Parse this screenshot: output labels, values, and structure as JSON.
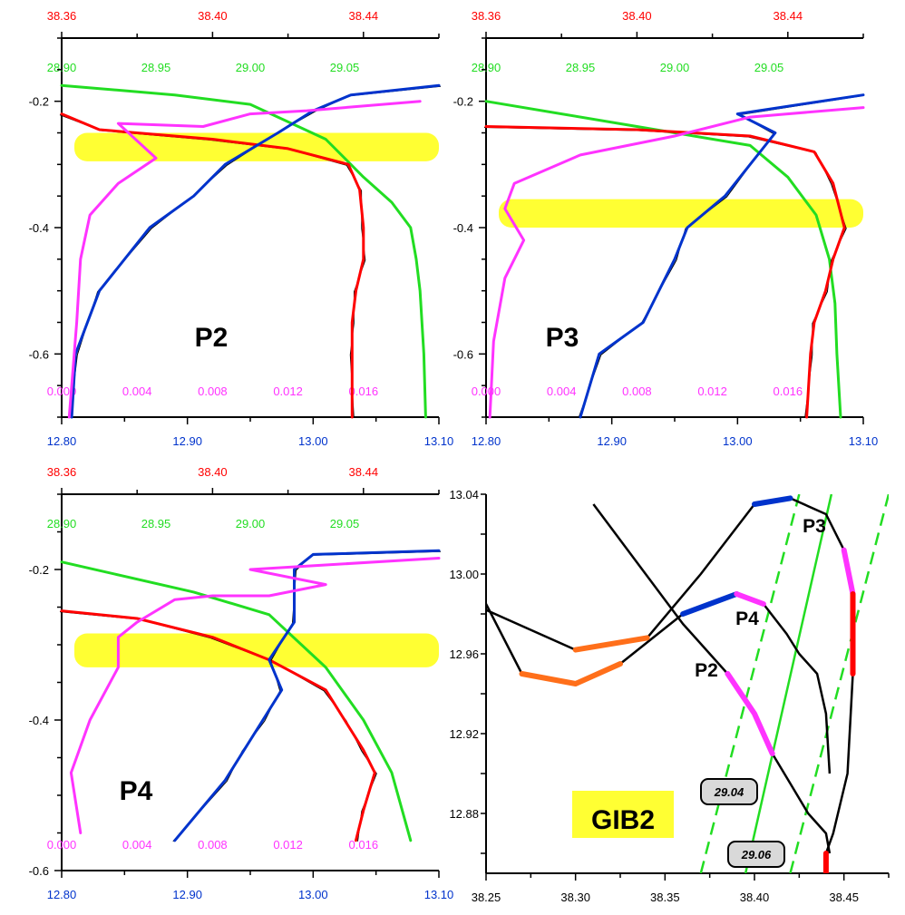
{
  "colors": {
    "salinity": "#ff0000",
    "density": "#22dd22",
    "nsquared": "#ff33ff",
    "temperature": "#0033cc",
    "raw": "#000000",
    "highlight": "#ffff33",
    "ts_curve": "#000000",
    "ts_segment_orange": "#ff6f1a"
  },
  "chart_data": [
    {
      "type": "line",
      "panel": "P2",
      "label": "P2",
      "ylim": [
        -0.7,
        -0.1
      ],
      "yticks": [
        "-0.2",
        "-0.4",
        "-0.6"
      ],
      "axes": {
        "salinity": {
          "range": [
            38.36,
            38.46
          ],
          "ticks": [
            "38.36",
            "38.40",
            "38.44"
          ]
        },
        "density": {
          "range": [
            28.9,
            29.1
          ],
          "ticks": [
            "28.90",
            "28.95",
            "29.00",
            "29.05"
          ]
        },
        "nsquared": {
          "range": [
            0.0,
            0.02
          ],
          "ticks": [
            "0.000",
            "0.004",
            "0.008",
            "0.012",
            "0.016"
          ]
        },
        "temperature": {
          "range": [
            12.8,
            13.1
          ],
          "ticks": [
            "12.80",
            "12.90",
            "13.00",
            "13.10"
          ]
        }
      },
      "highlight_band": [
        -0.25,
        -0.295
      ],
      "series": [
        {
          "key": "salinity",
          "x": [
            38.36,
            38.37,
            38.4,
            38.42,
            38.436,
            38.439,
            38.44,
            38.44,
            38.438,
            38.437,
            38.437,
            38.437
          ],
          "y": [
            -0.22,
            -0.245,
            -0.26,
            -0.275,
            -0.3,
            -0.34,
            -0.4,
            -0.45,
            -0.5,
            -0.55,
            -0.6,
            -0.7
          ]
        },
        {
          "key": "density",
          "x": [
            28.9,
            28.96,
            29.0,
            29.04,
            29.06,
            29.075,
            29.085,
            29.088,
            29.09,
            29.092,
            29.093
          ],
          "y": [
            -0.175,
            -0.19,
            -0.205,
            -0.26,
            -0.32,
            -0.36,
            -0.4,
            -0.45,
            -0.5,
            -0.6,
            -0.7
          ]
        },
        {
          "key": "nsquared",
          "x": [
            0.0004,
            0.0008,
            0.001,
            0.0015,
            0.003,
            0.005,
            0.003,
            0.0075,
            0.01,
            0.013,
            0.019
          ],
          "y": [
            -0.7,
            -0.55,
            -0.45,
            -0.38,
            -0.33,
            -0.29,
            -0.235,
            -0.24,
            -0.22,
            -0.215,
            -0.2
          ]
        },
        {
          "key": "temperature",
          "x": [
            12.808,
            12.811,
            12.83,
            12.87,
            12.905,
            12.93,
            12.972,
            13.0,
            13.03,
            13.1
          ],
          "y": [
            -0.7,
            -0.6,
            -0.5,
            -0.4,
            -0.35,
            -0.3,
            -0.25,
            -0.215,
            -0.19,
            -0.175
          ]
        }
      ]
    },
    {
      "type": "line",
      "panel": "P3",
      "label": "P3",
      "ylim": [
        -0.7,
        -0.1
      ],
      "yticks": [
        "-0.2",
        "-0.4",
        "-0.6"
      ],
      "axes": {
        "salinity": {
          "range": [
            38.36,
            38.46
          ],
          "ticks": [
            "38.36",
            "38.40",
            "38.44"
          ]
        },
        "density": {
          "range": [
            28.9,
            29.1
          ],
          "ticks": [
            "28.90",
            "28.95",
            "29.00",
            "29.05"
          ]
        },
        "nsquared": {
          "range": [
            0.0,
            0.02
          ],
          "ticks": [
            "0.000",
            "0.004",
            "0.008",
            "0.012",
            "0.016"
          ]
        },
        "temperature": {
          "range": [
            12.8,
            13.1
          ],
          "ticks": [
            "12.80",
            "12.90",
            "13.00",
            "13.10"
          ]
        }
      },
      "highlight_band": [
        -0.355,
        -0.4
      ],
      "series": [
        {
          "key": "salinity",
          "x": [
            38.36,
            38.4,
            38.43,
            38.447,
            38.452,
            38.455,
            38.452,
            38.45,
            38.447,
            38.446,
            38.445
          ],
          "y": [
            -0.24,
            -0.245,
            -0.255,
            -0.28,
            -0.33,
            -0.4,
            -0.45,
            -0.5,
            -0.55,
            -0.6,
            -0.7
          ]
        },
        {
          "key": "density",
          "x": [
            28.9,
            28.98,
            29.04,
            29.06,
            29.075,
            29.082,
            29.085,
            29.086,
            29.088
          ],
          "y": [
            -0.2,
            -0.24,
            -0.27,
            -0.32,
            -0.38,
            -0.45,
            -0.52,
            -0.6,
            -0.7
          ]
        },
        {
          "key": "nsquared",
          "x": [
            0.0002,
            0.0004,
            0.001,
            0.002,
            0.001,
            0.0015,
            0.005,
            0.01,
            0.014,
            0.02
          ],
          "y": [
            -0.7,
            -0.58,
            -0.48,
            -0.42,
            -0.37,
            -0.33,
            -0.285,
            -0.255,
            -0.225,
            -0.21
          ]
        },
        {
          "key": "temperature",
          "x": [
            12.875,
            12.89,
            12.925,
            12.95,
            12.96,
            12.99,
            13.03,
            13.0,
            13.1
          ],
          "y": [
            -0.7,
            -0.6,
            -0.55,
            -0.45,
            -0.4,
            -0.35,
            -0.25,
            -0.22,
            -0.19
          ]
        }
      ]
    },
    {
      "type": "line",
      "panel": "P4",
      "label": "P4",
      "ylim": [
        -0.6,
        -0.1
      ],
      "yticks": [
        "-0.2",
        "-0.4",
        "-0.6"
      ],
      "axes": {
        "salinity": {
          "range": [
            38.36,
            38.46
          ],
          "ticks": [
            "38.36",
            "38.40",
            "38.44"
          ]
        },
        "density": {
          "range": [
            28.9,
            29.1
          ],
          "ticks": [
            "28.90",
            "28.95",
            "29.00",
            "29.05"
          ]
        },
        "nsquared": {
          "range": [
            0.0,
            0.02
          ],
          "ticks": [
            "0.000",
            "0.004",
            "0.008",
            "0.012",
            "0.016"
          ]
        },
        "temperature": {
          "range": [
            12.8,
            13.1
          ],
          "ticks": [
            "12.80",
            "12.90",
            "13.00",
            "13.10"
          ]
        }
      },
      "highlight_band": [
        -0.285,
        -0.33
      ],
      "series": [
        {
          "key": "salinity",
          "x": [
            38.36,
            38.38,
            38.4,
            38.415,
            38.43,
            38.435,
            38.44,
            38.443,
            38.44,
            38.438
          ],
          "y": [
            -0.255,
            -0.265,
            -0.29,
            -0.32,
            -0.36,
            -0.4,
            -0.44,
            -0.47,
            -0.52,
            -0.56
          ]
        },
        {
          "key": "density",
          "x": [
            28.9,
            28.97,
            29.01,
            29.04,
            29.06,
            29.075,
            29.085
          ],
          "y": [
            -0.19,
            -0.23,
            -0.26,
            -0.33,
            -0.4,
            -0.47,
            -0.56
          ]
        },
        {
          "key": "nsquared",
          "x": [
            0.001,
            0.0005,
            0.0015,
            0.003,
            0.003,
            0.004,
            0.006,
            0.008,
            0.011,
            0.014,
            0.01,
            0.02
          ],
          "y": [
            -0.55,
            -0.47,
            -0.4,
            -0.33,
            -0.29,
            -0.27,
            -0.24,
            -0.235,
            -0.235,
            -0.22,
            -0.2,
            -0.185
          ]
        },
        {
          "key": "temperature",
          "x": [
            12.89,
            12.93,
            12.945,
            12.96,
            12.975,
            12.965,
            12.985,
            12.985,
            13.0,
            13.1
          ],
          "y": [
            -0.56,
            -0.48,
            -0.44,
            -0.4,
            -0.36,
            -0.32,
            -0.27,
            -0.2,
            -0.18,
            -0.175
          ]
        }
      ]
    },
    {
      "type": "line",
      "panel": "GIB2",
      "label": "GIB2",
      "xlim": [
        38.25,
        38.475
      ],
      "ylim": [
        12.85,
        13.04
      ],
      "xticks": [
        "38.25",
        "38.30",
        "38.35",
        "38.40",
        "38.45"
      ],
      "yticks": [
        "13.04",
        "13.00",
        "12.96",
        "12.92",
        "12.88"
      ],
      "profile_labels": [
        "P3",
        "P4",
        "P2"
      ],
      "isopycnal_labels": [
        "29.04",
        "29.06"
      ],
      "curves": [
        {
          "name": "P3",
          "x": [
            38.25,
            38.3,
            38.34,
            38.37,
            38.4,
            38.42,
            38.44,
            38.45,
            38.455,
            38.455,
            38.452,
            38.448,
            38.444,
            38.44,
            38.44
          ],
          "y": [
            12.982,
            12.962,
            12.968,
            13.0,
            13.035,
            13.038,
            13.03,
            13.012,
            12.99,
            12.95,
            12.9,
            12.885,
            12.87,
            12.86,
            12.85
          ]
        },
        {
          "name": "P4",
          "x": [
            38.25,
            38.27,
            38.3,
            38.325,
            38.36,
            38.39,
            38.405,
            38.418,
            38.425,
            38.435,
            38.44,
            38.442
          ],
          "y": [
            12.985,
            12.95,
            12.945,
            12.955,
            12.98,
            12.99,
            12.985,
            12.97,
            12.96,
            12.95,
            12.93,
            12.9
          ]
        },
        {
          "name": "P2",
          "x": [
            38.31,
            38.36,
            38.385,
            38.4,
            38.41,
            38.42,
            38.43,
            38.44,
            38.442
          ],
          "y": [
            13.035,
            12.975,
            12.95,
            12.93,
            12.91,
            12.895,
            12.88,
            12.87,
            12.86
          ]
        }
      ],
      "isopycnals": [
        {
          "style": "dashed",
          "x": [
            38.37,
            38.425
          ],
          "y": [
            12.85,
            13.04
          ]
        },
        {
          "style": "solid",
          "x": [
            38.395,
            38.443
          ],
          "y": [
            12.85,
            13.04
          ]
        },
        {
          "style": "dashed",
          "x": [
            38.42,
            38.475
          ],
          "y": [
            12.85,
            13.04
          ]
        }
      ]
    }
  ]
}
